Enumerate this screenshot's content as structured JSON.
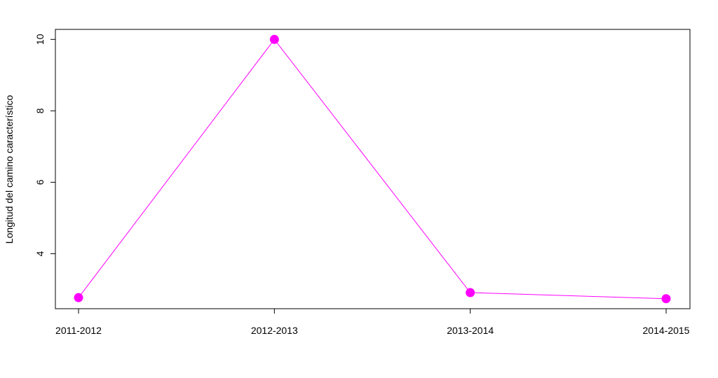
{
  "chart_data": {
    "type": "line",
    "categories": [
      "2011-2012",
      "2012-2013",
      "2013-2014",
      "2014-2015"
    ],
    "series": [
      {
        "values": [
          2.77,
          10.0,
          2.91,
          2.74
        ],
        "color": "#ff00ff"
      }
    ],
    "title": "",
    "xlabel": "",
    "ylabel": "Longitud del camino característico",
    "yticks": [
      4,
      6,
      8,
      10
    ],
    "ylim": [
      2.46,
      10.28
    ],
    "grid": false,
    "marker": "filled-circle"
  }
}
